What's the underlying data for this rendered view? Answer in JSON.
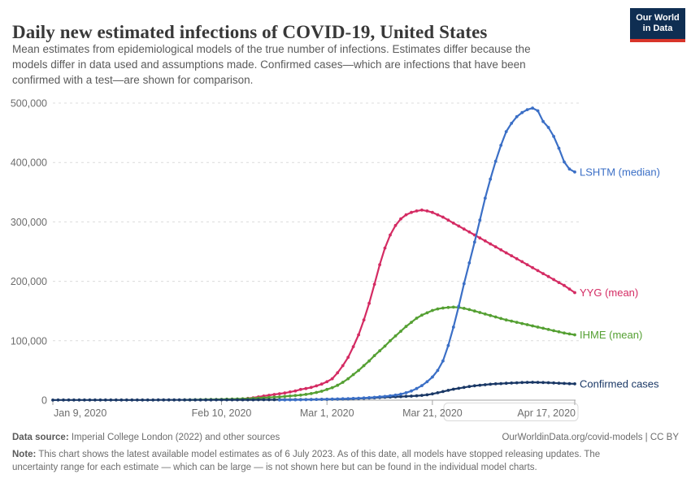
{
  "header": {
    "title": "Daily new estimated infections of COVID-19, United States",
    "subtitle_lines": [
      "Mean estimates from epidemiological models of the true number of infections. Estimates differ because the",
      "models differ in data used and assumptions made. Confirmed cases—which are infections that have been",
      "confirmed with a test—are shown for comparison."
    ],
    "logo": {
      "line1": "Our World",
      "line2": "in Data",
      "bg_color": "#0F2E52",
      "stripe_color": "#D8352A"
    }
  },
  "footer": {
    "data_source_label": "Data source:",
    "data_source_text": " Imperial College London (2022) and other sources",
    "link_text": "OurWorldinData.org/covid-models | CC BY",
    "note_label": "Note:",
    "note_line1": " This chart shows the latest available model estimates as of 6 July 2023. As of this date, all models have stopped releasing updates. The",
    "note_line2": "uncertainty range for each estimate — which can be large — is not shown here but can be found in the individual model charts."
  },
  "chart_data": {
    "type": "line",
    "title": "Daily new estimated infections of COVID-19, United States",
    "x_unit": "days since Jan 9, 2020",
    "x_domain": [
      0,
      99
    ],
    "y_domain": [
      0,
      500000
    ],
    "grid": "dashed horizontal",
    "legend_position": "line-end labels, right side",
    "x_ticks": [
      {
        "day": 0,
        "label": "Jan 9, 2020"
      },
      {
        "day": 32,
        "label": "Feb 10, 2020"
      },
      {
        "day": 52,
        "label": "Mar 1, 2020"
      },
      {
        "day": 72,
        "label": "Mar 21, 2020"
      },
      {
        "day": 99,
        "label": "Apr 17, 2020"
      }
    ],
    "y_ticks": [
      {
        "value": 0,
        "label": "0"
      },
      {
        "value": 100000,
        "label": "100,000"
      },
      {
        "value": 200000,
        "label": "200,000"
      },
      {
        "value": 300000,
        "label": "300,000"
      },
      {
        "value": 400000,
        "label": "400,000"
      },
      {
        "value": 500000,
        "label": "500,000"
      }
    ],
    "series": [
      {
        "name": "YYG (mean)",
        "color": "#D42B63",
        "points": [
          [
            36,
            2000
          ],
          [
            38,
            4000
          ],
          [
            40,
            7000
          ],
          [
            42,
            9500
          ],
          [
            44,
            12000
          ],
          [
            46,
            15500
          ],
          [
            47,
            18000
          ],
          [
            48,
            19500
          ],
          [
            49,
            21500
          ],
          [
            50,
            24000
          ],
          [
            51,
            27000
          ],
          [
            52,
            31000
          ],
          [
            53,
            36000
          ],
          [
            54,
            46000
          ],
          [
            55,
            58000
          ],
          [
            56,
            72000
          ],
          [
            57,
            90000
          ],
          [
            58,
            110000
          ],
          [
            59,
            135000
          ],
          [
            60,
            163000
          ],
          [
            61,
            195000
          ],
          [
            62,
            228000
          ],
          [
            63,
            256000
          ],
          [
            64,
            278000
          ],
          [
            65,
            294000
          ],
          [
            66,
            305000
          ],
          [
            67,
            312000
          ],
          [
            68,
            316000
          ],
          [
            69,
            318500
          ],
          [
            70,
            320000
          ],
          [
            71,
            318500
          ],
          [
            72,
            316000
          ],
          [
            73,
            312000
          ],
          [
            74,
            308000
          ],
          [
            75,
            303000
          ],
          [
            76,
            298000
          ],
          [
            77,
            293000
          ],
          [
            78,
            288000
          ],
          [
            79,
            283000
          ],
          [
            80,
            278000
          ],
          [
            81,
            273000
          ],
          [
            82,
            268000
          ],
          [
            83,
            263000
          ],
          [
            84,
            258000
          ],
          [
            85,
            253000
          ],
          [
            86,
            248000
          ],
          [
            87,
            243000
          ],
          [
            88,
            238000
          ],
          [
            89,
            233000
          ],
          [
            90,
            228000
          ],
          [
            91,
            223000
          ],
          [
            92,
            218000
          ],
          [
            93,
            213000
          ],
          [
            94,
            208000
          ],
          [
            95,
            203000
          ],
          [
            96,
            198000
          ],
          [
            97,
            193000
          ],
          [
            98,
            187000
          ],
          [
            99,
            181000
          ]
        ]
      },
      {
        "name": "IHME (mean)",
        "color": "#55A033",
        "points": [
          [
            25,
            500
          ],
          [
            28,
            800
          ],
          [
            31,
            1200
          ],
          [
            34,
            1800
          ],
          [
            37,
            2600
          ],
          [
            40,
            4000
          ],
          [
            43,
            5500
          ],
          [
            45,
            7000
          ],
          [
            47,
            8500
          ],
          [
            49,
            11000
          ],
          [
            51,
            15000
          ],
          [
            53,
            21000
          ],
          [
            54,
            25000
          ],
          [
            55,
            30000
          ],
          [
            56,
            36000
          ],
          [
            57,
            43000
          ],
          [
            58,
            50000
          ],
          [
            59,
            58000
          ],
          [
            60,
            66000
          ],
          [
            61,
            75000
          ],
          [
            62,
            83000
          ],
          [
            63,
            91000
          ],
          [
            64,
            100000
          ],
          [
            65,
            108000
          ],
          [
            66,
            116000
          ],
          [
            67,
            124000
          ],
          [
            68,
            131000
          ],
          [
            69,
            138000
          ],
          [
            70,
            143000
          ],
          [
            71,
            147000
          ],
          [
            72,
            151000
          ],
          [
            73,
            153500
          ],
          [
            74,
            155000
          ],
          [
            75,
            156000
          ],
          [
            76,
            156500
          ],
          [
            77,
            156000
          ],
          [
            78,
            154500
          ],
          [
            79,
            152500
          ],
          [
            80,
            150000
          ],
          [
            81,
            147500
          ],
          [
            82,
            145000
          ],
          [
            83,
            142500
          ],
          [
            84,
            140000
          ],
          [
            85,
            137500
          ],
          [
            86,
            135000
          ],
          [
            87,
            133000
          ],
          [
            88,
            131000
          ],
          [
            89,
            129000
          ],
          [
            90,
            127000
          ],
          [
            91,
            125000
          ],
          [
            92,
            123000
          ],
          [
            93,
            121000
          ],
          [
            94,
            119000
          ],
          [
            95,
            117000
          ],
          [
            96,
            115000
          ],
          [
            97,
            113000
          ],
          [
            98,
            111500
          ],
          [
            99,
            110000
          ]
        ]
      },
      {
        "name": "Confirmed cases",
        "color": "#1A3866",
        "points": [
          [
            0,
            200
          ],
          [
            4,
            220
          ],
          [
            8,
            250
          ],
          [
            12,
            280
          ],
          [
            16,
            310
          ],
          [
            20,
            350
          ],
          [
            24,
            400
          ],
          [
            28,
            450
          ],
          [
            32,
            500
          ],
          [
            36,
            550
          ],
          [
            40,
            650
          ],
          [
            44,
            800
          ],
          [
            48,
            1000
          ],
          [
            52,
            1400
          ],
          [
            54,
            1700
          ],
          [
            56,
            2100
          ],
          [
            58,
            2700
          ],
          [
            60,
            3500
          ],
          [
            62,
            4500
          ],
          [
            64,
            5300
          ],
          [
            66,
            6000
          ],
          [
            68,
            6800
          ],
          [
            70,
            8000
          ],
          [
            71,
            9000
          ],
          [
            72,
            10500
          ],
          [
            73,
            12500
          ],
          [
            74,
            14500
          ],
          [
            75,
            16500
          ],
          [
            76,
            18500
          ],
          [
            77,
            20000
          ],
          [
            78,
            21500
          ],
          [
            79,
            23000
          ],
          [
            80,
            24200
          ],
          [
            81,
            25200
          ],
          [
            82,
            26000
          ],
          [
            83,
            26800
          ],
          [
            84,
            27400
          ],
          [
            85,
            27900
          ],
          [
            86,
            28400
          ],
          [
            87,
            28800
          ],
          [
            88,
            29200
          ],
          [
            89,
            29600
          ],
          [
            90,
            29900
          ],
          [
            91,
            30000
          ],
          [
            92,
            29900
          ],
          [
            93,
            29700
          ],
          [
            94,
            29400
          ],
          [
            95,
            29000
          ],
          [
            96,
            28600
          ],
          [
            97,
            28200
          ],
          [
            98,
            27800
          ],
          [
            99,
            27500
          ]
        ]
      },
      {
        "name": "LSHTM (median)",
        "color": "#3B6FC6",
        "points": [
          [
            43,
            300
          ],
          [
            45,
            500
          ],
          [
            47,
            700
          ],
          [
            49,
            1000
          ],
          [
            51,
            1400
          ],
          [
            53,
            1800
          ],
          [
            55,
            2300
          ],
          [
            57,
            2900
          ],
          [
            59,
            3700
          ],
          [
            61,
            4800
          ],
          [
            63,
            6300
          ],
          [
            65,
            8500
          ],
          [
            66,
            10000
          ],
          [
            67,
            12500
          ],
          [
            68,
            15500
          ],
          [
            69,
            19500
          ],
          [
            70,
            24500
          ],
          [
            71,
            31000
          ],
          [
            72,
            39000
          ],
          [
            73,
            50000
          ],
          [
            74,
            66000
          ],
          [
            75,
            92000
          ],
          [
            76,
            123000
          ],
          [
            77,
            158000
          ],
          [
            78,
            196000
          ],
          [
            79,
            231000
          ],
          [
            80,
            266000
          ],
          [
            81,
            303000
          ],
          [
            82,
            340000
          ],
          [
            83,
            372000
          ],
          [
            84,
            402000
          ],
          [
            85,
            429000
          ],
          [
            86,
            452000
          ],
          [
            87,
            466000
          ],
          [
            88,
            477000
          ],
          [
            89,
            484000
          ],
          [
            90,
            489000
          ],
          [
            91,
            491500
          ],
          [
            92,
            487000
          ],
          [
            93,
            469000
          ],
          [
            94,
            459000
          ],
          [
            95,
            444000
          ],
          [
            96,
            424000
          ],
          [
            97,
            401000
          ],
          [
            98,
            389000
          ],
          [
            99,
            384000
          ]
        ]
      }
    ],
    "end_labels": [
      "LSHTM (median)",
      "YYG (mean)",
      "IHME (mean)",
      "Confirmed cases"
    ]
  }
}
